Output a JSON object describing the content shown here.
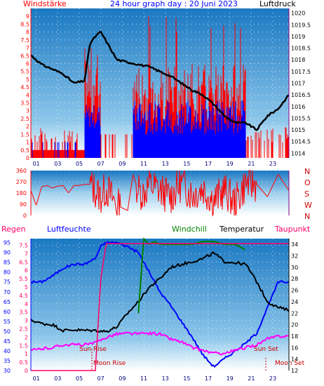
{
  "header": {
    "left_label": "Windstärke",
    "title": "24 hour graph day : 20 Juni 2023",
    "right_label": "Luftdruck"
  },
  "panel2": {
    "compass": [
      "N",
      "W",
      "S",
      "O",
      "N"
    ]
  },
  "panel3": {
    "labels": {
      "rain": "Regen",
      "humidity": "Luftfeuchte",
      "windchill": "Windchill",
      "temperature": "Temperatur",
      "dewpoint": "Taupunkt"
    },
    "annotations": {
      "sun_rise": "Sun Rise",
      "moon_rise": "Moon Rise",
      "sun_set": "Sun Set",
      "moon_set": "Moon Set"
    }
  },
  "colors": {
    "wind": "#ff0000",
    "gust": "#0000ff",
    "pressure": "#000000",
    "humidity": "#0000ff",
    "temperature": "#000000",
    "dewpoint": "#ff00ff",
    "windchill": "#008000",
    "rain": "#ff0066",
    "bg_top": "#1f82c4",
    "bg_bottom": "#ffffff"
  },
  "chart_data": [
    {
      "type": "line",
      "xlim": [
        0,
        24
      ],
      "x_ticks": [
        "01",
        "03",
        "05",
        "07",
        "09",
        "11",
        "13",
        "15",
        "17",
        "19",
        "21",
        "23"
      ],
      "y_left": {
        "lim": [
          0,
          9.5
        ],
        "ticks": [
          "0",
          "0.5",
          "1",
          "1.5",
          "2",
          "2.5",
          "3",
          "3.5",
          "4",
          "4.5",
          "5",
          "5.5",
          "6",
          "6.5",
          "7",
          "7.5",
          "8",
          "8.5",
          "9"
        ]
      },
      "y_right": {
        "lim": [
          1013.8,
          1020.2
        ],
        "ticks": [
          "1014",
          "1014.5",
          "1015",
          "1015.5",
          "1016",
          "1016.5",
          "1017",
          "1017.5",
          "1018",
          "1018.5",
          "1019",
          "1019.5",
          "1020"
        ]
      },
      "series": [
        {
          "name": "Luftdruck",
          "axis": "right",
          "x": [
            0,
            1,
            2,
            3,
            4,
            5,
            5.5,
            6,
            6.5,
            7,
            7.5,
            8,
            9,
            10,
            11,
            12,
            13,
            14,
            15,
            16,
            17,
            18,
            19,
            20,
            21,
            22,
            23,
            24
          ],
          "y": [
            1018.2,
            1017.8,
            1017.6,
            1017.4,
            1017.0,
            1017.1,
            1018.7,
            1019.0,
            1019.2,
            1018.8,
            1018.4,
            1018.0,
            1017.9,
            1017.8,
            1017.7,
            1017.5,
            1017.3,
            1017.0,
            1016.7,
            1016.5,
            1016.1,
            1015.6,
            1015.3,
            1015.3,
            1015.0,
            1015.6,
            1015.9,
            1016.5
          ]
        }
      ]
    },
    {
      "type": "line",
      "xlim": [
        0,
        24
      ],
      "y_left": {
        "lim": [
          0,
          360
        ],
        "ticks": [
          "0",
          "90",
          "180",
          "270",
          "360"
        ]
      },
      "series": [
        {
          "name": "Wind direction",
          "x": [
            0,
            0.5,
            1,
            1.5,
            2,
            2.5,
            3,
            3.5,
            4,
            4.5,
            5,
            5.5,
            6,
            6.5,
            7,
            8,
            9,
            9.5,
            10,
            10.5,
            11,
            12,
            13,
            14,
            15,
            16,
            17,
            18,
            19,
            20,
            21,
            22,
            23,
            24
          ],
          "y": [
            200,
            80,
            230,
            240,
            220,
            235,
            240,
            180,
            240,
            240,
            250,
            250,
            200,
            150,
            220,
            80,
            40,
            330,
            200,
            180,
            250,
            200,
            150,
            260,
            170,
            220,
            120,
            200,
            100,
            260,
            250,
            150,
            330,
            200
          ]
        }
      ]
    },
    {
      "type": "line",
      "xlim": [
        0,
        24
      ],
      "y_left": {
        "lim": [
          30,
          97
        ],
        "ticks": [
          "30",
          "35",
          "40",
          "45",
          "50",
          "55",
          "60",
          "65",
          "70",
          "75",
          "80",
          "85",
          "90",
          "95"
        ]
      },
      "y_left_inner": {
        "lim": [
          0,
          7.9
        ],
        "ticks": [
          "0",
          "0.5",
          "1",
          "1.5",
          "2",
          "2.5",
          "3",
          "3.5",
          "4",
          "4.5",
          "5",
          "5.5",
          "6",
          "6.5",
          "7",
          "7.5"
        ]
      },
      "y_right": {
        "lim": [
          12,
          35
        ],
        "ticks": [
          "12",
          "14",
          "16",
          "18",
          "20",
          "22",
          "24",
          "26",
          "28",
          "30",
          "32",
          "34"
        ]
      },
      "series": [
        {
          "name": "Luftfeuchte",
          "axis": "left",
          "x": [
            0,
            1,
            2,
            3,
            4,
            5,
            6,
            6.5,
            7,
            8,
            9,
            10,
            11,
            12,
            13,
            14,
            15,
            16,
            17,
            18,
            19,
            20,
            21,
            22,
            23,
            24
          ],
          "y": [
            75,
            75,
            78,
            82,
            84,
            84,
            87,
            93,
            95,
            95,
            93,
            90,
            80,
            70,
            63,
            55,
            47,
            38,
            32,
            36,
            40,
            44,
            49,
            62,
            75,
            75
          ]
        },
        {
          "name": "Temperatur",
          "axis": "right",
          "x": [
            0,
            1,
            2,
            3,
            4,
            5,
            6,
            7,
            8,
            9,
            10,
            11,
            12,
            13,
            14,
            15,
            16,
            17,
            18,
            19,
            20,
            21,
            22,
            23,
            24
          ],
          "y": [
            20.8,
            20.2,
            20.0,
            19.0,
            19.1,
            19.0,
            19.0,
            18.8,
            19.6,
            22.0,
            24.0,
            26.5,
            28.0,
            30.0,
            30.5,
            31.0,
            31.5,
            32.5,
            31.0,
            30.8,
            30.5,
            27.5,
            24.0,
            23.0,
            22.5
          ]
        },
        {
          "name": "Taupunkt",
          "axis": "right",
          "x": [
            0,
            1,
            2,
            3,
            4,
            5,
            6,
            7,
            8,
            9,
            10,
            11,
            12,
            13,
            14,
            15,
            16,
            17,
            18,
            19,
            20,
            21,
            22,
            23,
            24
          ],
          "y": [
            15.5,
            15.8,
            16.0,
            16.5,
            16.5,
            16.5,
            16.8,
            17.8,
            18.4,
            18.5,
            18.4,
            18.5,
            18.4,
            17.5,
            17.0,
            16.0,
            15.5,
            15.0,
            15.0,
            15.5,
            16.0,
            16.5,
            17.5,
            18.0,
            18.0
          ]
        },
        {
          "name": "Windchill",
          "axis": "right",
          "x": [
            10,
            10.5,
            11,
            11.5,
            12,
            13,
            14,
            15,
            16,
            17,
            18,
            19,
            20
          ],
          "y": [
            22,
            35,
            34,
            34.5,
            34,
            34,
            34,
            34,
            34.5,
            34.5,
            34,
            34,
            33
          ]
        },
        {
          "name": "Regen",
          "axis": "left_inner",
          "x": [
            0,
            6,
            6.5,
            7,
            7.5,
            8,
            9,
            10,
            11,
            12,
            13,
            14,
            15,
            16,
            17,
            18,
            19,
            20,
            21,
            22,
            23,
            24
          ],
          "y": [
            0,
            0,
            5.5,
            7.6,
            7.6,
            7.6,
            7.6,
            7.6,
            7.6,
            7.6,
            7.6,
            7.6,
            7.6,
            7.6,
            7.6,
            7.6,
            7.6,
            7.6,
            7.6,
            7.6,
            7.6,
            7.6
          ]
        }
      ]
    }
  ]
}
